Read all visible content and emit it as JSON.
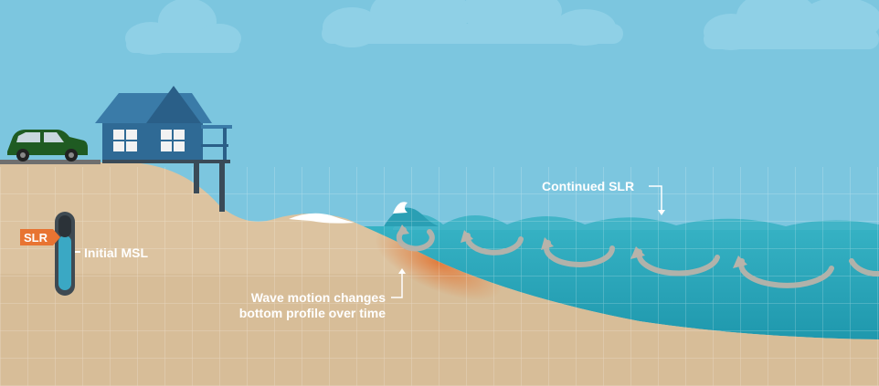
{
  "labels": {
    "slr_badge": "SLR",
    "initial_msl": "Initial MSL",
    "continued_slr": "Continued SLR",
    "wave_motion_line1": "Wave motion changes",
    "wave_motion_line2": "bottom profile over time"
  },
  "colors": {
    "sky": "#7cc6df",
    "cloud": "#8fd0e6",
    "sand": "#dcc3a0",
    "sand_dark": "#c9a97f",
    "water": "#2fa9bd",
    "water_surface": "#1e97ad",
    "wave_crest": "#41b4c7",
    "house": "#2f6a95",
    "roof": "#3a7ba8",
    "car": "#1f5b22",
    "badge": "#e87432",
    "erosion": "#e07a3a",
    "swirl": "#b8b3aa"
  },
  "icons": [
    "house-icon",
    "car-icon",
    "cloud-icon",
    "gauge-icon",
    "swirl-arrow-icon"
  ]
}
